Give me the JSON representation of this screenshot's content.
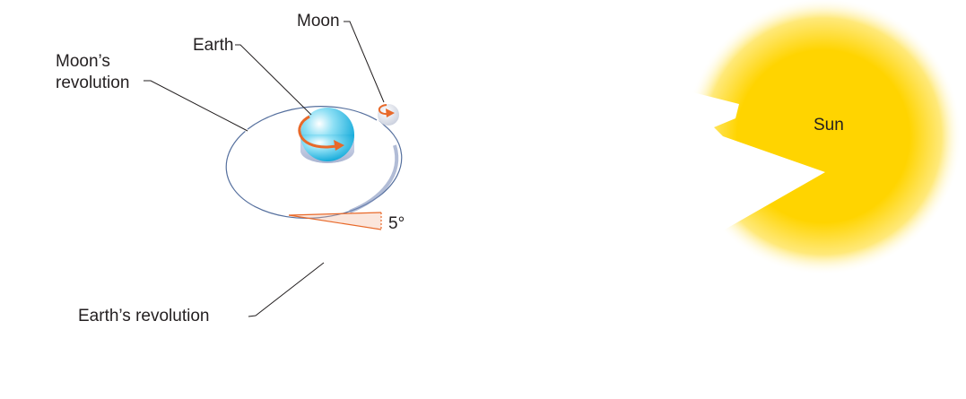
{
  "labels": {
    "moon": "Moon",
    "earth": "Earth",
    "moons_revolution_line1": "Moon’s",
    "moons_revolution_line2": "revolution",
    "sun": "Sun",
    "angle": "5°",
    "earths_revolution": "Earth’s revolution"
  },
  "colors": {
    "plane_dark": "#3e7bc2",
    "plane_light": "#ffffff",
    "sun_core": "#ffd400",
    "sun_glow": "#fff2b0",
    "arrow": "#e8692a",
    "orbit_line": "#ffffff",
    "moon_orbit": "#5a6f96",
    "label_text": "#231f20"
  }
}
